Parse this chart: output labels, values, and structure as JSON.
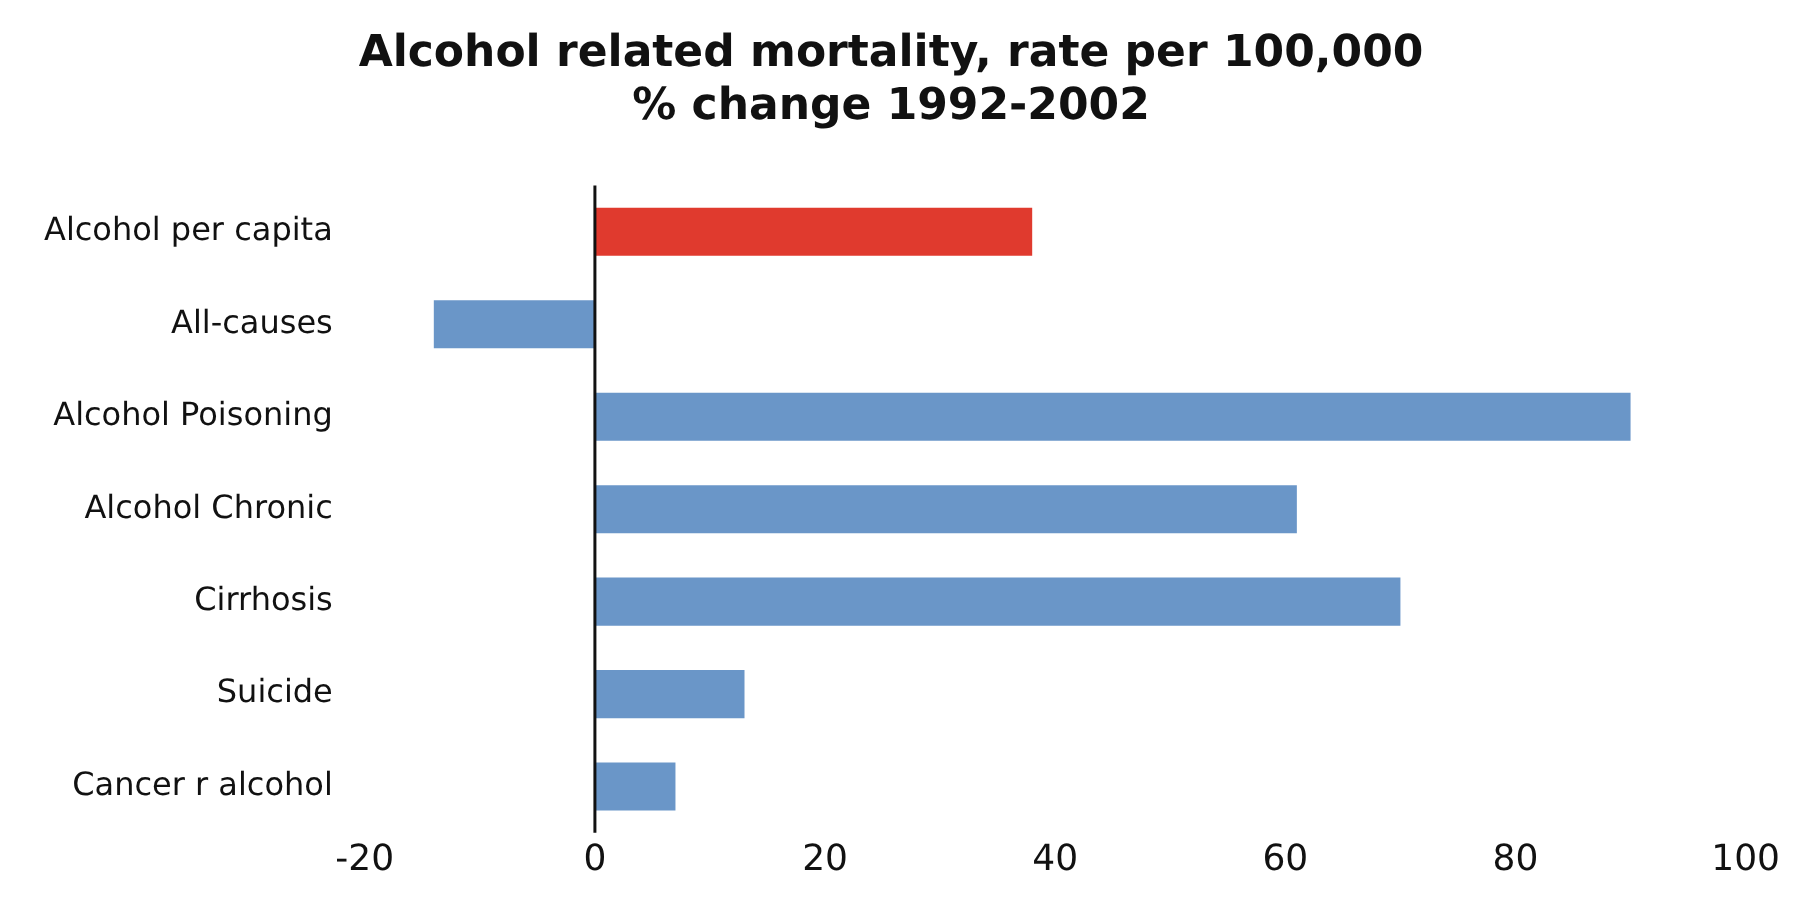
{
  "chart_data": {
    "type": "bar",
    "orientation": "horizontal",
    "title": "Alcohol related mortality, rate per 100,000",
    "subtitle": "% change 1992-2002",
    "categories": [
      "Alcohol per capita",
      "All-causes",
      "Alcohol Poisoning",
      "Alcohol Chronic",
      "Cirrhosis",
      "Suicide",
      "Cancer r alcohol"
    ],
    "values": [
      38,
      -14,
      90,
      61,
      70,
      13,
      7
    ],
    "colors": [
      "#e03a2e",
      "#6a96c8",
      "#6a96c8",
      "#6a96c8",
      "#6a96c8",
      "#6a96c8",
      "#6a96c8"
    ],
    "xlim": [
      -20,
      100
    ],
    "xticks": [
      -20,
      0,
      20,
      40,
      60,
      80,
      100
    ],
    "grid": false,
    "ref_lines": [
      {
        "axis": "x",
        "value": 0,
        "color": "#111111"
      }
    ],
    "legend": false
  }
}
